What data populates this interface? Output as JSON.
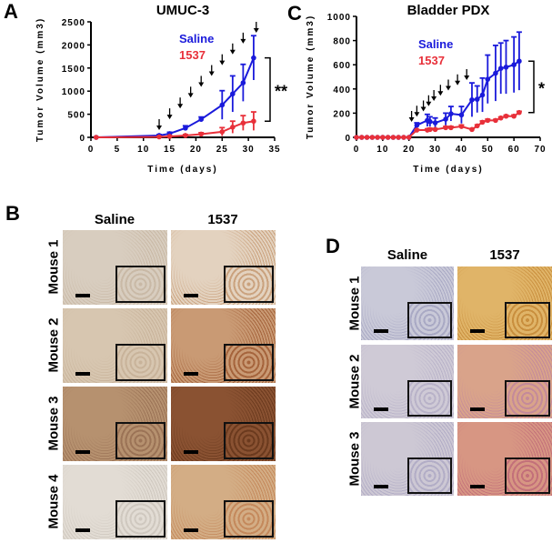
{
  "panel_labels": {
    "a": "A",
    "b": "B",
    "c": "C",
    "d": "D"
  },
  "colors": {
    "saline": "#1a1adb",
    "drug": "#e8303a"
  },
  "chart_data": [
    {
      "type": "line",
      "panel": "A",
      "title": "UMUC-3",
      "xlabel": "Time (days)",
      "ylabel": "Tumor Volume (mm3)",
      "xlim": [
        0,
        35
      ],
      "ylim": [
        0,
        2500
      ],
      "xticks": [
        0,
        5,
        10,
        15,
        20,
        25,
        30,
        35
      ],
      "yticks": [
        0,
        500,
        1000,
        1500,
        2000,
        2500
      ],
      "significance": "**",
      "legend": "top-center",
      "treatment_arrows_days": [
        13,
        15,
        17,
        19,
        21,
        23,
        25,
        27,
        29,
        31.5
      ],
      "series": [
        {
          "name": "Saline",
          "x": [
            1,
            13,
            15,
            18,
            21,
            25,
            27,
            29,
            31
          ],
          "y": [
            0,
            40,
            80,
            200,
            390,
            700,
            940,
            1180,
            1720
          ],
          "err": [
            5,
            20,
            30,
            50,
            50,
            310,
            390,
            400,
            480
          ]
        },
        {
          "name": "1537",
          "x": [
            1,
            13,
            15,
            18,
            21,
            25,
            27,
            29,
            31
          ],
          "y": [
            0,
            10,
            20,
            40,
            70,
            120,
            220,
            310,
            350
          ],
          "err": [
            5,
            10,
            15,
            20,
            30,
            90,
            130,
            160,
            200
          ]
        }
      ]
    },
    {
      "type": "line",
      "panel": "C",
      "title": "Bladder PDX",
      "xlabel": "Time (days)",
      "ylabel": "Tumor Volume (mm3)",
      "xlim": [
        0,
        70
      ],
      "ylim": [
        0,
        1000
      ],
      "xticks": [
        0,
        10,
        20,
        30,
        40,
        50,
        60,
        70
      ],
      "yticks": [
        0,
        200,
        400,
        600,
        800,
        1000
      ],
      "significance": "*",
      "legend": "top-center",
      "treatment_arrows_days": [
        21,
        23,
        25.5,
        27.5,
        29.5,
        32,
        35,
        38.5,
        42
      ],
      "series": [
        {
          "name": "Saline",
          "x": [
            0,
            2,
            4,
            6,
            8,
            10,
            12,
            14,
            16,
            18,
            20,
            23,
            27,
            28,
            30,
            34,
            36,
            40,
            44,
            46,
            48,
            50,
            53,
            55,
            57,
            60,
            62
          ],
          "y": [
            0,
            0,
            0,
            0,
            0,
            0,
            0,
            0,
            0,
            0,
            0,
            100,
            140,
            130,
            120,
            150,
            195,
            185,
            310,
            315,
            350,
            480,
            530,
            570,
            580,
            600,
            630
          ],
          "err": [
            0,
            0,
            0,
            0,
            0,
            0,
            0,
            0,
            0,
            0,
            0,
            20,
            50,
            40,
            40,
            50,
            60,
            70,
            140,
            110,
            140,
            200,
            230,
            210,
            220,
            230,
            240
          ]
        },
        {
          "name": "1537",
          "x": [
            0,
            2,
            4,
            6,
            8,
            10,
            12,
            14,
            16,
            18,
            20,
            23,
            27,
            28,
            30,
            34,
            36,
            40,
            44,
            46,
            48,
            50,
            53,
            55,
            57,
            60,
            62
          ],
          "y": [
            0,
            0,
            0,
            0,
            0,
            0,
            0,
            0,
            0,
            0,
            0,
            60,
            60,
            65,
            65,
            80,
            80,
            90,
            65,
            95,
            125,
            140,
            140,
            160,
            175,
            175,
            205
          ],
          "err": [
            0,
            0,
            0,
            0,
            0,
            0,
            0,
            0,
            0,
            0,
            0,
            5,
            10,
            10,
            8,
            10,
            10,
            12,
            8,
            8,
            10,
            10,
            8,
            8,
            8,
            10,
            10
          ]
        }
      ]
    }
  ],
  "panel_b": {
    "columns": [
      "Saline",
      "1537"
    ],
    "rows": [
      "Mouse 1",
      "Mouse 2",
      "Mouse 3",
      "Mouse 4"
    ]
  },
  "panel_d": {
    "columns": [
      "Saline",
      "1537"
    ],
    "rows": [
      "Mouse 1",
      "Mouse 2",
      "Mouse 3"
    ]
  }
}
